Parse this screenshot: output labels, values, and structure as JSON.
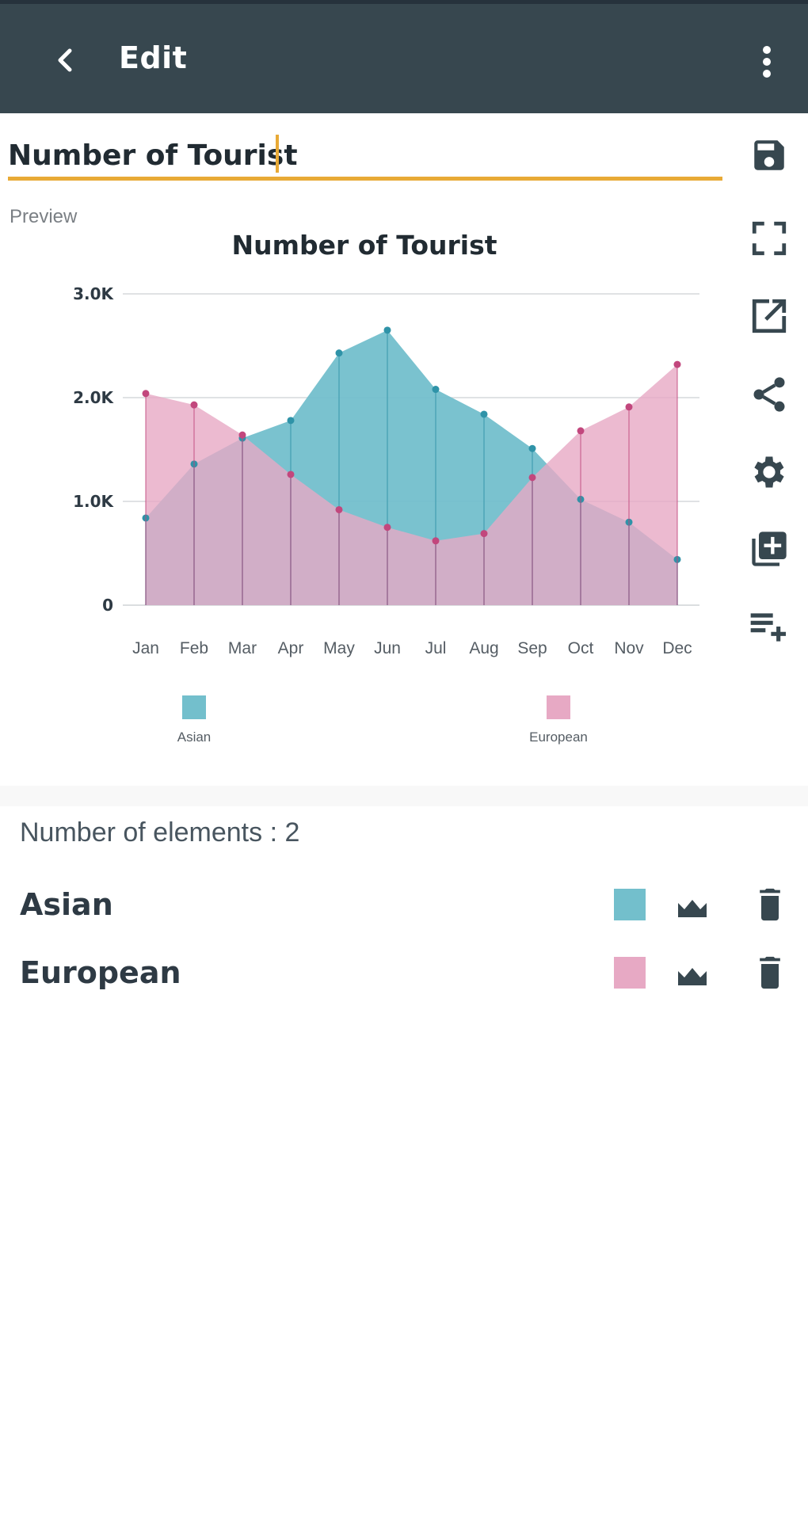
{
  "appbar": {
    "title": "Edit"
  },
  "editor": {
    "title_value": "Number of Tourist",
    "preview_label": "Preview"
  },
  "colors": {
    "accent": "#e8aa36",
    "appbar": "#37474f",
    "asian": "#73bfcc",
    "european": "#e7a9c4"
  },
  "side_tools": [
    "save-icon",
    "fullscreen-icon",
    "open-external-icon",
    "share-icon",
    "settings-icon",
    "add-copy-icon",
    "playlist-add-icon"
  ],
  "chart_data": {
    "type": "area",
    "title": "Number of Tourist",
    "categories": [
      "Jan",
      "Feb",
      "Mar",
      "Apr",
      "May",
      "Jun",
      "Jul",
      "Aug",
      "Sep",
      "Oct",
      "Nov",
      "Dec"
    ],
    "y_ticks": [
      "0",
      "1.0K",
      "2.0K",
      "3.0K"
    ],
    "ylim": [
      0,
      3000
    ],
    "grid": true,
    "legend_position": "bottom",
    "series": [
      {
        "name": "Asian",
        "color": "#73bfcc",
        "values": [
          840,
          1360,
          1610,
          1780,
          2430,
          2650,
          2080,
          1840,
          1510,
          1020,
          800,
          440
        ]
      },
      {
        "name": "European",
        "color": "#e7a9c4",
        "values": [
          2040,
          1930,
          1640,
          1260,
          920,
          750,
          620,
          690,
          1230,
          1680,
          1910,
          2320
        ]
      }
    ]
  },
  "elements": {
    "count_label": "Number of elements : 2",
    "items": [
      {
        "name": "Asian",
        "color": "#73bfcc"
      },
      {
        "name": "European",
        "color": "#e7a9c4"
      }
    ]
  }
}
